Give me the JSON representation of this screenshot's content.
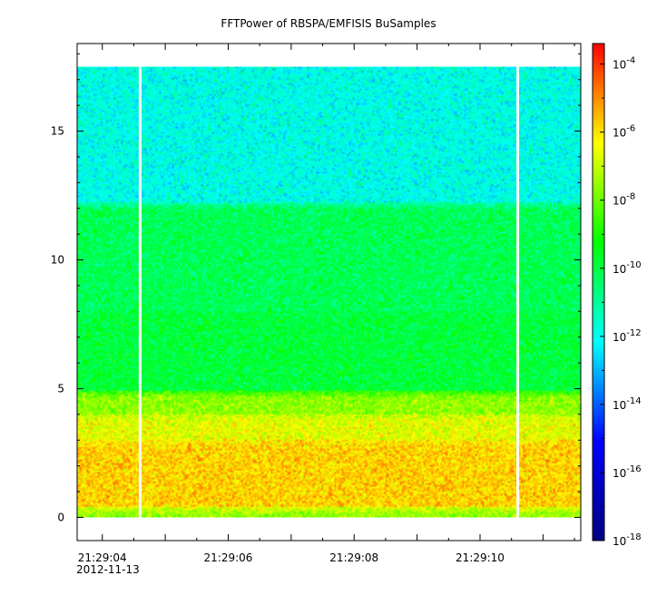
{
  "chart_data": {
    "type": "heatmap",
    "title": "FFTPower of RBSPA/EMFISIS  BuSamples",
    "xlabel": "",
    "ylabel": "",
    "x_start_date": "2012-11-13",
    "xlim": [
      "21:29:03.6",
      "21:29:11.6"
    ],
    "x_ticks": [
      "21:29:04",
      "21:29:06",
      "21:29:08",
      "21:29:10"
    ],
    "ylim": [
      -0.9,
      18.4
    ],
    "y_ticks": [
      0,
      5,
      10,
      15
    ],
    "data_extent": {
      "t_start": "21:29:03.6",
      "t_end": "21:29:11.6",
      "y_min": 0.0,
      "y_max": 17.5
    },
    "gaps": [
      "21:29:04.6",
      "21:29:10.6"
    ],
    "bands": [
      {
        "y_from": 0.0,
        "y_to": 0.4,
        "log10_power": -7.5
      },
      {
        "y_from": 0.4,
        "y_to": 3.0,
        "log10_power": -5.8
      },
      {
        "y_from": 3.0,
        "y_to": 4.0,
        "log10_power": -6.6
      },
      {
        "y_from": 4.0,
        "y_to": 4.9,
        "log10_power": -7.6
      },
      {
        "y_from": 4.9,
        "y_to": 8.0,
        "log10_power": -9.9
      },
      {
        "y_from": 8.0,
        "y_to": 12.2,
        "log10_power": -10.2
      },
      {
        "y_from": 12.2,
        "y_to": 17.5,
        "log10_power": -11.9
      }
    ],
    "colorbar": {
      "scale": "log",
      "range": [
        1e-18,
        0.0004
      ],
      "ticks": [
        -4,
        -6,
        -8,
        -10,
        -12,
        -14,
        -16,
        -18
      ],
      "tick_labels": [
        "10",
        "10",
        "10",
        "10",
        "10",
        "10",
        "10",
        "10"
      ],
      "tick_exponents": [
        "-4",
        "-6",
        "-8",
        "-10",
        "-12",
        "-14",
        "-16",
        "-18"
      ],
      "colormap": [
        "#000080",
        "#0000ff",
        "#00ffff",
        "#00ff00",
        "#ffff00",
        "#ff0000"
      ]
    }
  }
}
